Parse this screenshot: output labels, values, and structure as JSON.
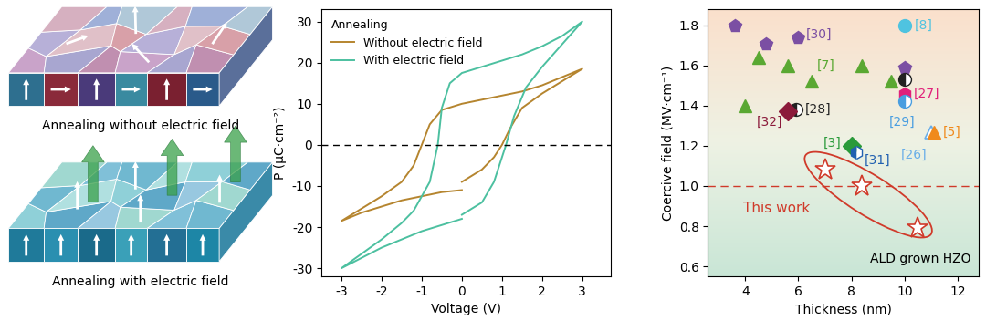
{
  "schematic": {
    "panels": [
      {
        "caption": "Annealing without electric field"
      },
      {
        "caption": "Annealing with electric field"
      }
    ]
  },
  "chart_data": [
    {
      "type": "line",
      "xlabel": "Voltage (V)",
      "ylabel": "P (μC·cm⁻²)",
      "xlim": [
        -3.5,
        3.7
      ],
      "xticks": [
        -3,
        -2,
        -1,
        0,
        1,
        2,
        3
      ],
      "ylim": [
        -32,
        33
      ],
      "yticks": [
        -30,
        -20,
        -10,
        0,
        10,
        20,
        30
      ],
      "hline": 0,
      "legend": "upper left",
      "legend_title": "Annealing",
      "series": [
        {
          "name": "Without electric field",
          "color": "#b5852f",
          "x": [
            0,
            0.5,
            0.8,
            1.0,
            1.2,
            1.5,
            2,
            2.5,
            3,
            2.5,
            2,
            1.5,
            1,
            0.5,
            0,
            -0.5,
            -0.8,
            -1.0,
            -1.2,
            -1.5,
            -2,
            -2.5,
            -3,
            -2.5,
            -2,
            -1.5,
            -1,
            -0.5,
            0
          ],
          "values": [
            -9,
            -6,
            -3,
            0,
            4,
            9,
            12.5,
            15.5,
            18.5,
            16.5,
            14.5,
            13,
            12,
            11,
            10,
            8.5,
            5,
            0,
            -5,
            -9,
            -12.5,
            -15.5,
            -18.5,
            -16.5,
            -15,
            -13.5,
            -12.5,
            -11.5,
            -11
          ]
        },
        {
          "name": "With electric field",
          "color": "#4cc0a0",
          "x": [
            0,
            0.5,
            0.8,
            1.0,
            1.1,
            1.3,
            1.6,
            2,
            2.5,
            3,
            2.5,
            2,
            1.5,
            1,
            0.5,
            0,
            -0.3,
            -0.5,
            -0.6,
            -0.8,
            -1.2,
            -1.5,
            -2,
            -2.5,
            -3,
            -2.5,
            -2,
            -1.5,
            -1,
            -0.5,
            0
          ],
          "values": [
            -17,
            -14,
            -9,
            -3,
            0,
            7,
            14,
            19,
            24.5,
            30,
            26.5,
            24,
            22,
            20.5,
            19,
            17.5,
            15,
            9,
            0,
            -9,
            -16,
            -19,
            -23,
            -26.5,
            -30,
            -27.5,
            -25,
            -23,
            -21,
            -19.5,
            -18
          ]
        }
      ]
    },
    {
      "type": "scatter",
      "xlabel": "Thickness (nm)",
      "ylabel": "Coercive field (MV·cm⁻¹)",
      "xlim": [
        2.6,
        12.8
      ],
      "xticks": [
        4,
        6,
        8,
        10,
        12
      ],
      "ylim": [
        0.55,
        1.88
      ],
      "yticks": [
        0.6,
        0.8,
        1.0,
        1.2,
        1.4,
        1.6,
        1.8
      ],
      "hline": 1.0,
      "annotations": [
        "ALD grown HZO"
      ],
      "series": [
        {
          "name": "[30]",
          "color": "#7b4fa3",
          "marker": "pentagon",
          "x": [
            3.6,
            4.8,
            6.0,
            10.0
          ],
          "values": [
            1.8,
            1.71,
            1.74,
            1.59
          ]
        },
        {
          "name": "[8]",
          "color": "#4fc3e0",
          "marker": "circle",
          "x": [
            10.0
          ],
          "values": [
            1.8
          ]
        },
        {
          "name": "[7]",
          "color": "#5aa832",
          "marker": "triangle",
          "x": [
            4.0,
            4.5,
            5.6,
            6.5,
            8.4,
            9.5
          ],
          "values": [
            1.4,
            1.64,
            1.6,
            1.52,
            1.6,
            1.52
          ]
        },
        {
          "name": "[28]",
          "color": "#222222",
          "marker": "circle-half",
          "x": [
            5.9,
            10.0
          ],
          "values": [
            1.38,
            1.53
          ]
        },
        {
          "name": "[32]",
          "color": "#8b1a3a",
          "marker": "diamond",
          "x": [
            5.6
          ],
          "values": [
            1.37
          ]
        },
        {
          "name": "[27]",
          "color": "#e0207a",
          "marker": "hexagon",
          "x": [
            10.0
          ],
          "values": [
            1.46
          ]
        },
        {
          "name": "[29]",
          "color": "#4a9ee0",
          "marker": "circle-half",
          "x": [
            10.0
          ],
          "values": [
            1.42
          ]
        },
        {
          "name": "[26]",
          "color": "#6aaee8",
          "marker": "triangle-open",
          "x": [
            11.0
          ],
          "values": [
            1.27
          ]
        },
        {
          "name": "[5]",
          "color": "#f08a1c",
          "marker": "triangle",
          "x": [
            11.1
          ],
          "values": [
            1.27
          ]
        },
        {
          "name": "[3]",
          "color": "#2a9a3a",
          "marker": "diamond",
          "x": [
            8.0
          ],
          "values": [
            1.2
          ]
        },
        {
          "name": "[31]",
          "color": "#2060b0",
          "marker": "hexagon-half",
          "x": [
            8.2
          ],
          "values": [
            1.17
          ]
        },
        {
          "name": "This work",
          "color": "#d03a2a",
          "marker": "star-open",
          "x": [
            7.0,
            8.4,
            10.5
          ],
          "values": [
            1.08,
            1.0,
            0.79
          ]
        }
      ]
    }
  ]
}
